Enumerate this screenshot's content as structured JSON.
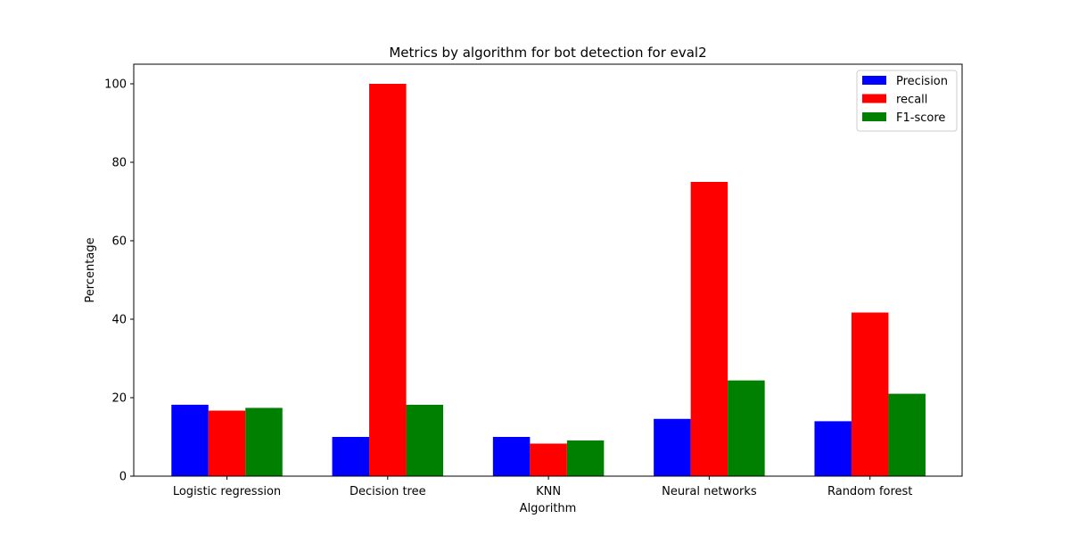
{
  "chart_data": {
    "type": "bar",
    "title": "Metrics by algorithm for bot detection for eval2",
    "xlabel": "Algorithm",
    "ylabel": "Percentage",
    "categories": [
      "Logistic regression",
      "Decision tree",
      "KNN",
      "Neural networks",
      "Random forest"
    ],
    "series": [
      {
        "name": "Precision",
        "color": "#0000ff",
        "values": [
          18.2,
          10.0,
          10.0,
          14.6,
          14.0
        ]
      },
      {
        "name": "recall",
        "color": "#ff0000",
        "values": [
          16.7,
          100.0,
          8.3,
          75.0,
          41.7
        ]
      },
      {
        "name": "F1-score",
        "color": "#008000",
        "values": [
          17.4,
          18.2,
          9.1,
          24.4,
          21.0
        ]
      }
    ],
    "ylim": [
      0,
      105
    ],
    "yticks": [
      0,
      20,
      40,
      60,
      80,
      100
    ],
    "grid": false,
    "legend_position": "top-right"
  }
}
